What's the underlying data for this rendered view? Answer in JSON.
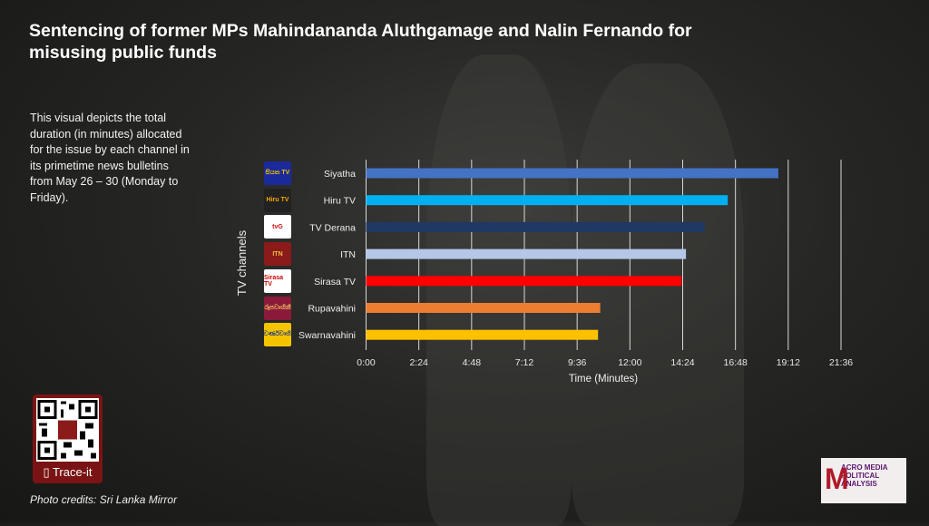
{
  "title": "Sentencing of former MPs Mahindananda Aluthgamage and Nalin Fernando for misusing public funds",
  "description": "This visual depicts the total duration  (in minutes) allocated for the issue by each channel in its primetime news bulletins from May 26 – 30  (Monday to Friday).",
  "qr": {
    "label": "Trace-it",
    "icon": "phone-icon"
  },
  "credits": "Photo credits: Sri Lanka Mirror",
  "brand": {
    "logo_text": "ACRO MEDIA POLITICAL ANALYSIS"
  },
  "chart_data": {
    "type": "bar",
    "orientation": "horizontal",
    "title": "",
    "xlabel": "Time (Minutes)",
    "ylabel": "TV channels",
    "categories": [
      "Siyatha",
      "Hiru TV",
      "TV Derana",
      "ITN",
      "Sirasa TV",
      "Rupavahini",
      "Swarnavahini"
    ],
    "values": [
      18.75,
      16.45,
      15.4,
      14.55,
      14.35,
      10.65,
      10.55
    ],
    "colors": [
      "#4472c4",
      "#00b0f0",
      "#1f3864",
      "#b4c7e7",
      "#ff0000",
      "#ed7d31",
      "#ffc000"
    ],
    "xlim": [
      0,
      21.6
    ],
    "xticks": [
      0,
      2.4,
      4.8,
      7.2,
      9.6,
      12,
      14.4,
      16.8,
      19.2,
      21.6
    ],
    "xtick_labels": [
      "0:00",
      "2:24",
      "4:48",
      "7:12",
      "9:36",
      "12:00",
      "14:24",
      "16:48",
      "19:12",
      "21:36"
    ],
    "grid": true,
    "logo_texts": [
      "සියත TV",
      "Hiru TV",
      "tvG",
      "ITN",
      "Sirasa TV",
      "රූපවාහිනී",
      "ස්වර්ණවාහිනී"
    ]
  }
}
